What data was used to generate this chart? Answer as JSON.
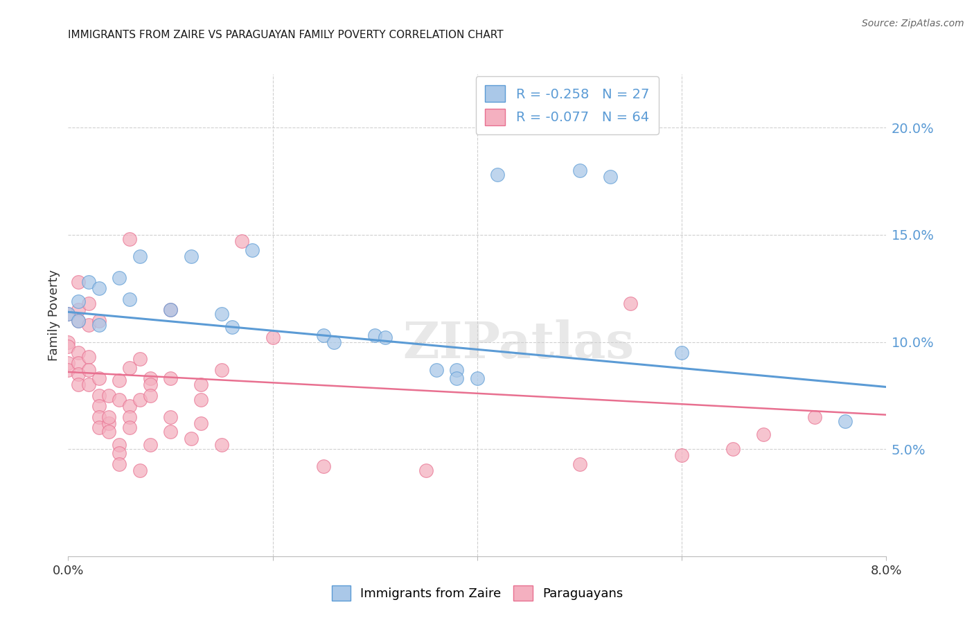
{
  "title": "IMMIGRANTS FROM ZAIRE VS PARAGUAYAN FAMILY POVERTY CORRELATION CHART",
  "source": "Source: ZipAtlas.com",
  "ylabel": "Family Poverty",
  "right_yticks": [
    "20.0%",
    "15.0%",
    "10.0%",
    "5.0%"
  ],
  "right_ytick_vals": [
    0.2,
    0.15,
    0.1,
    0.05
  ],
  "xlim": [
    0.0,
    0.08
  ],
  "ylim": [
    0.0,
    0.225
  ],
  "legend_line1": "R = -0.258   N = 27",
  "legend_line2": "R = -0.077   N = 64",
  "blue_scatter": [
    [
      0.0,
      0.113
    ],
    [
      0.001,
      0.11
    ],
    [
      0.001,
      0.119
    ],
    [
      0.002,
      0.128
    ],
    [
      0.003,
      0.125
    ],
    [
      0.003,
      0.108
    ],
    [
      0.005,
      0.13
    ],
    [
      0.006,
      0.12
    ],
    [
      0.007,
      0.14
    ],
    [
      0.01,
      0.115
    ],
    [
      0.012,
      0.14
    ],
    [
      0.015,
      0.113
    ],
    [
      0.016,
      0.107
    ],
    [
      0.018,
      0.143
    ],
    [
      0.025,
      0.103
    ],
    [
      0.026,
      0.1
    ],
    [
      0.03,
      0.103
    ],
    [
      0.031,
      0.102
    ],
    [
      0.036,
      0.087
    ],
    [
      0.038,
      0.087
    ],
    [
      0.04,
      0.083
    ],
    [
      0.042,
      0.178
    ],
    [
      0.05,
      0.18
    ],
    [
      0.053,
      0.177
    ],
    [
      0.038,
      0.083
    ],
    [
      0.06,
      0.095
    ],
    [
      0.076,
      0.063
    ]
  ],
  "pink_scatter": [
    [
      0.0,
      0.113
    ],
    [
      0.0,
      0.1
    ],
    [
      0.0,
      0.098
    ],
    [
      0.0,
      0.09
    ],
    [
      0.0,
      0.087
    ],
    [
      0.001,
      0.128
    ],
    [
      0.001,
      0.115
    ],
    [
      0.001,
      0.11
    ],
    [
      0.001,
      0.095
    ],
    [
      0.001,
      0.09
    ],
    [
      0.001,
      0.085
    ],
    [
      0.001,
      0.08
    ],
    [
      0.002,
      0.093
    ],
    [
      0.002,
      0.087
    ],
    [
      0.002,
      0.08
    ],
    [
      0.002,
      0.118
    ],
    [
      0.002,
      0.108
    ],
    [
      0.003,
      0.11
    ],
    [
      0.003,
      0.083
    ],
    [
      0.003,
      0.075
    ],
    [
      0.003,
      0.07
    ],
    [
      0.003,
      0.065
    ],
    [
      0.003,
      0.06
    ],
    [
      0.004,
      0.075
    ],
    [
      0.004,
      0.062
    ],
    [
      0.004,
      0.058
    ],
    [
      0.004,
      0.065
    ],
    [
      0.005,
      0.073
    ],
    [
      0.005,
      0.082
    ],
    [
      0.005,
      0.052
    ],
    [
      0.005,
      0.048
    ],
    [
      0.005,
      0.043
    ],
    [
      0.006,
      0.148
    ],
    [
      0.006,
      0.088
    ],
    [
      0.006,
      0.07
    ],
    [
      0.006,
      0.065
    ],
    [
      0.006,
      0.06
    ],
    [
      0.007,
      0.092
    ],
    [
      0.007,
      0.073
    ],
    [
      0.007,
      0.04
    ],
    [
      0.008,
      0.083
    ],
    [
      0.008,
      0.08
    ],
    [
      0.008,
      0.075
    ],
    [
      0.008,
      0.052
    ],
    [
      0.01,
      0.115
    ],
    [
      0.01,
      0.083
    ],
    [
      0.01,
      0.065
    ],
    [
      0.01,
      0.058
    ],
    [
      0.012,
      0.055
    ],
    [
      0.013,
      0.08
    ],
    [
      0.013,
      0.073
    ],
    [
      0.013,
      0.062
    ],
    [
      0.015,
      0.087
    ],
    [
      0.015,
      0.052
    ],
    [
      0.017,
      0.147
    ],
    [
      0.02,
      0.102
    ],
    [
      0.025,
      0.042
    ],
    [
      0.035,
      0.04
    ],
    [
      0.05,
      0.043
    ],
    [
      0.055,
      0.118
    ],
    [
      0.06,
      0.047
    ],
    [
      0.065,
      0.05
    ],
    [
      0.068,
      0.057
    ],
    [
      0.073,
      0.065
    ]
  ],
  "blue_line_x": [
    0.0,
    0.08
  ],
  "blue_line_y": [
    0.114,
    0.079
  ],
  "pink_line_x": [
    0.0,
    0.08
  ],
  "pink_line_y": [
    0.086,
    0.066
  ],
  "blue_color": "#5b9bd5",
  "pink_color": "#e87090",
  "blue_scatter_face": "#aac8e8",
  "pink_scatter_face": "#f4b0c0",
  "grid_color": "#d0d0d0",
  "right_axis_color": "#5b9bd5",
  "bg_color": "#ffffff",
  "title_color": "#1a1a1a",
  "source_color": "#666666",
  "ylabel_color": "#333333",
  "xtick_color": "#333333",
  "legend_border_color": "#cccccc"
}
